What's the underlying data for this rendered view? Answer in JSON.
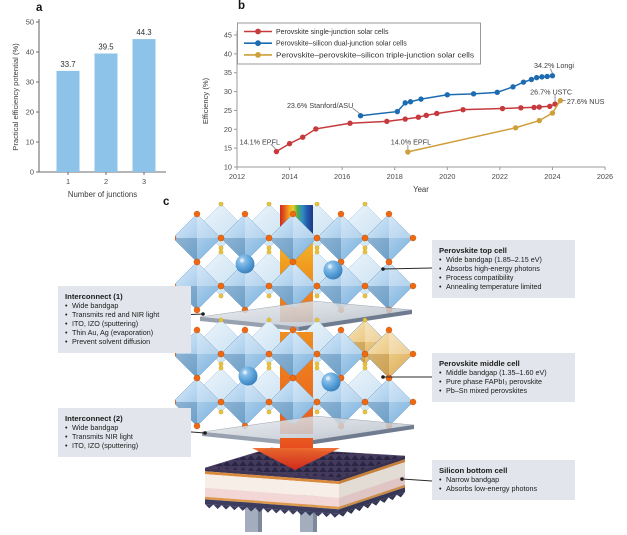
{
  "panels": {
    "a": "a",
    "b": "b",
    "c": "c"
  },
  "chart_data": [
    {
      "id": "practical-efficiency-bar",
      "type": "bar",
      "categories": [
        "1",
        "2",
        "3"
      ],
      "values": [
        33.7,
        39.5,
        44.3
      ],
      "title": "",
      "xlabel": "Number of junctions",
      "ylabel": "Practical efficiency potential (%)",
      "ylim": [
        0,
        50
      ],
      "yticks": [
        0,
        10,
        20,
        30,
        40,
        50
      ],
      "bar_color": "#8dc3e8",
      "grid": false
    },
    {
      "id": "record-efficiency-line",
      "type": "line",
      "title": "",
      "xlabel": "Year",
      "ylabel": "Efficiency (%)",
      "xlim": [
        2012,
        2026
      ],
      "ylim": [
        10,
        45
      ],
      "xticks": [
        2012,
        2014,
        2016,
        2018,
        2020,
        2022,
        2024,
        2026
      ],
      "yticks": [
        10,
        15,
        20,
        25,
        30,
        35,
        40,
        45
      ],
      "legend_position": "top-left",
      "grid": false,
      "series": [
        {
          "name": "Perovskite single-junction solar cells",
          "color": "#c63a3e",
          "x": [
            2013.5,
            2014.0,
            2014.5,
            2015.0,
            2016.3,
            2017.7,
            2018.4,
            2018.9,
            2019.2,
            2019.6,
            2020.6,
            2022.1,
            2022.8,
            2023.3,
            2023.5,
            2023.9,
            2024.1
          ],
          "y": [
            14.1,
            16.2,
            17.9,
            20.1,
            21.6,
            22.1,
            22.7,
            23.2,
            23.7,
            24.2,
            25.2,
            25.5,
            25.7,
            25.8,
            25.9,
            26.1,
            26.7
          ]
        },
        {
          "name": "Perovskite–silicon dual-junction solar cells",
          "color": "#1d6cb1",
          "x": [
            2016.7,
            2018.1,
            2018.4,
            2018.6,
            2019.0,
            2020.0,
            2021.0,
            2021.9,
            2022.5,
            2022.9,
            2023.2,
            2023.4,
            2023.6,
            2023.8,
            2024.0
          ],
          "y": [
            23.6,
            24.7,
            27.0,
            27.3,
            28.0,
            29.15,
            29.4,
            29.8,
            31.25,
            32.5,
            33.2,
            33.7,
            33.9,
            34.0,
            34.2
          ]
        },
        {
          "name": "Perovskite–perovskite–silicon triple-junction solar cells",
          "color": "#cf9f3a",
          "x": [
            2018.5,
            2022.6,
            2023.5,
            2024.0,
            2024.3
          ],
          "y": [
            14.0,
            20.4,
            22.3,
            24.3,
            27.6
          ]
        }
      ],
      "annotations": [
        {
          "text": "14.1% EPFL",
          "text_x": 2012.1,
          "text_y": 16.6,
          "leader": [
            [
              2013.28,
              16.1
            ],
            [
              2013.48,
              14.7
            ]
          ]
        },
        {
          "text": "23.6% Stanford/ASU",
          "text_x": 2013.9,
          "text_y": 26.3,
          "leader": [
            [
              2016.4,
              25.6
            ],
            [
              2016.66,
              24.2
            ]
          ]
        },
        {
          "text": "14.0% EPFL",
          "text_x": 2017.85,
          "text_y": 16.6,
          "leader": [
            [
              2018.5,
              15.9
            ],
            [
              2018.5,
              14.7
            ]
          ]
        },
        {
          "text": "34.2% Longi",
          "text_x": 2023.3,
          "text_y": 36.9,
          "leader": [
            [
              2023.92,
              36.1
            ],
            [
              2024.0,
              34.9
            ]
          ]
        },
        {
          "text": "26.7% USTC",
          "text_x": 2023.15,
          "text_y": 29.9,
          "leader": [
            [
              2024.1,
              29.2
            ],
            [
              2024.1,
              27.4
            ]
          ]
        },
        {
          "text": "27.6% NUS",
          "text_x": 2024.55,
          "text_y": 27.4,
          "leader": [
            [
              2024.5,
              27.6
            ],
            [
              2024.37,
              27.6
            ]
          ]
        }
      ]
    }
  ],
  "diagram": {
    "boxes": [
      {
        "title": "Interconnect (1)",
        "bullets": [
          "Wide bandgap",
          "Transmits red and NIR light",
          "ITO, IZO (sputtering)",
          "Thin Au, Ag (evaporation)",
          "Prevent solvent diffusion"
        ]
      },
      {
        "title": "Interconnect (2)",
        "bullets": [
          "Wide bandgap",
          "Transmits NIR light",
          "ITO, IZO (sputtering)"
        ]
      },
      {
        "title": "Perovskite top cell",
        "bullets": [
          "Wide bandgap (1.85–2.15 eV)",
          "Absorbs high-energy photons",
          "Process compatibility",
          "Annealing temperature limited"
        ]
      },
      {
        "title": "Perovskite middle cell",
        "bullets": [
          "Middle bandgap (1.35–1.60 eV)",
          "Pure phase FAPbI₃ perovskite",
          "Pb–Sn mixed perovskites"
        ]
      },
      {
        "title": "Silicon bottom cell",
        "bullets": [
          "Narrow bandgap",
          "Absorbs low-energy photons"
        ]
      }
    ],
    "colors": {
      "box_bg": "#e2e5eb",
      "octahedron_blue": "#a9cdec",
      "octahedron_tan": "#e9c887",
      "vertex_orange": "#ed6a13",
      "dopant_yellow": "#e8c33c",
      "sphere_blue": "#3f88c5",
      "slab_gray": "#c7ccd4",
      "silicon_navy": "#3e3654",
      "beam_orange": "#ee7a1d",
      "cone_red": "#dd3420"
    }
  }
}
